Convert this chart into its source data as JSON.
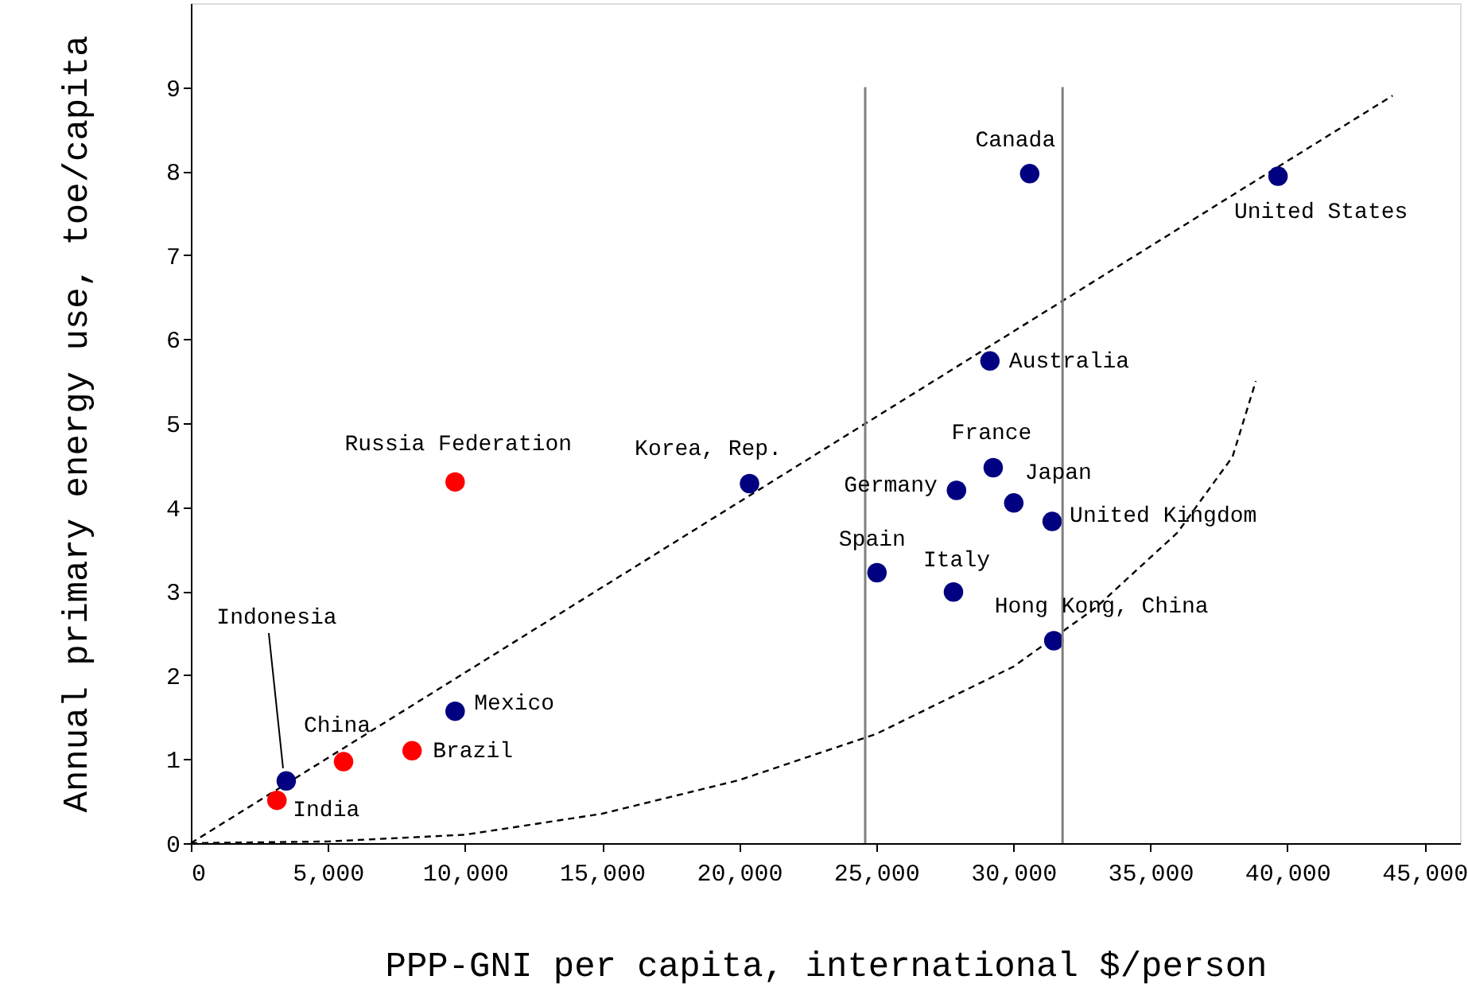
{
  "chart_data": {
    "type": "scatter",
    "xlabel": "PPP-GNI per capita,  international $/person",
    "ylabel": "Annual primary energy use,  toe/capita",
    "xlim": [
      0,
      46300
    ],
    "ylim": [
      0,
      10
    ],
    "xticks": [
      {
        "value": 0,
        "label": "0"
      },
      {
        "value": 5000,
        "label": "5,000"
      },
      {
        "value": 10000,
        "label": "10,000"
      },
      {
        "value": 15000,
        "label": "15,000"
      },
      {
        "value": 20000,
        "label": "20,000"
      },
      {
        "value": 25000,
        "label": "25,000"
      },
      {
        "value": 30000,
        "label": "30,000"
      },
      {
        "value": 35000,
        "label": "35,000"
      },
      {
        "value": 40000,
        "label": "40,000"
      },
      {
        "value": 45000,
        "label": "45,000"
      }
    ],
    "yticks": [
      0,
      1,
      2,
      3,
      4,
      5,
      6,
      7,
      8,
      9
    ],
    "grid": false,
    "marker": "circle",
    "series": [
      {
        "type": "line",
        "line_style": "dashed",
        "marker": "none",
        "color": "#000000",
        "x": [
          0,
          43840
        ],
        "values": [
          0,
          8.9
        ]
      },
      {
        "type": "line",
        "line_style": "dashed",
        "marker": "none",
        "color": "#000000",
        "x": [
          0,
          5000,
          10000,
          15000,
          20000,
          25000,
          30000,
          33000,
          36000,
          38000,
          38850
        ],
        "values": [
          0,
          0.02,
          0.1,
          0.35,
          0.75,
          1.3,
          2.1,
          2.8,
          3.7,
          4.6,
          5.5
        ]
      },
      {
        "color": "#ff0000",
        "x": [
          3140,
          5570,
          8070,
          9640
        ],
        "values": [
          0.51,
          0.97,
          1.1,
          4.3
        ]
      },
      {
        "color": "#000080",
        "x": [
          3480,
          9640,
          20380,
          25030,
          27820,
          27930,
          29270,
          30020,
          31420,
          31480,
          29150,
          30600,
          39660
        ],
        "values": [
          0.74,
          1.57,
          4.28,
          3.22,
          2.99,
          4.2,
          4.47,
          4.05,
          3.83,
          2.41,
          5.74,
          7.97,
          7.94
        ]
      }
    ],
    "ref_lines": [
      {
        "axis": "x",
        "value": 24600,
        "color": "#808080",
        "line_style": "solid"
      },
      {
        "axis": "x",
        "value": 31800,
        "color": "#808080",
        "line_style": "solid"
      }
    ],
    "annotations": [
      {
        "text": "India",
        "x": 3140,
        "y": 0.51
      },
      {
        "text": "Indonesia",
        "x": 3480,
        "y": 0.74
      },
      {
        "text": "China",
        "x": 5570,
        "y": 0.97
      },
      {
        "text": "Brazil",
        "x": 8070,
        "y": 1.1
      },
      {
        "text": "Mexico",
        "x": 9640,
        "y": 1.57
      },
      {
        "text": "Russia Federation",
        "x": 9640,
        "y": 4.3
      },
      {
        "text": "Korea, Rep.",
        "x": 20380,
        "y": 4.28
      },
      {
        "text": "Spain",
        "x": 25030,
        "y": 3.22
      },
      {
        "text": "Italy",
        "x": 27820,
        "y": 2.99
      },
      {
        "text": "Germany",
        "x": 27930,
        "y": 4.2
      },
      {
        "text": "France",
        "x": 29270,
        "y": 4.47
      },
      {
        "text": "Japan",
        "x": 30020,
        "y": 4.05
      },
      {
        "text": "United Kingdom",
        "x": 31420,
        "y": 3.83
      },
      {
        "text": "Hong Kong, China",
        "x": 31480,
        "y": 2.41
      },
      {
        "text": "Australia",
        "x": 29150,
        "y": 5.74
      },
      {
        "text": "Canada",
        "x": 30600,
        "y": 7.97
      },
      {
        "text": "United States",
        "x": 39660,
        "y": 7.94
      }
    ]
  }
}
